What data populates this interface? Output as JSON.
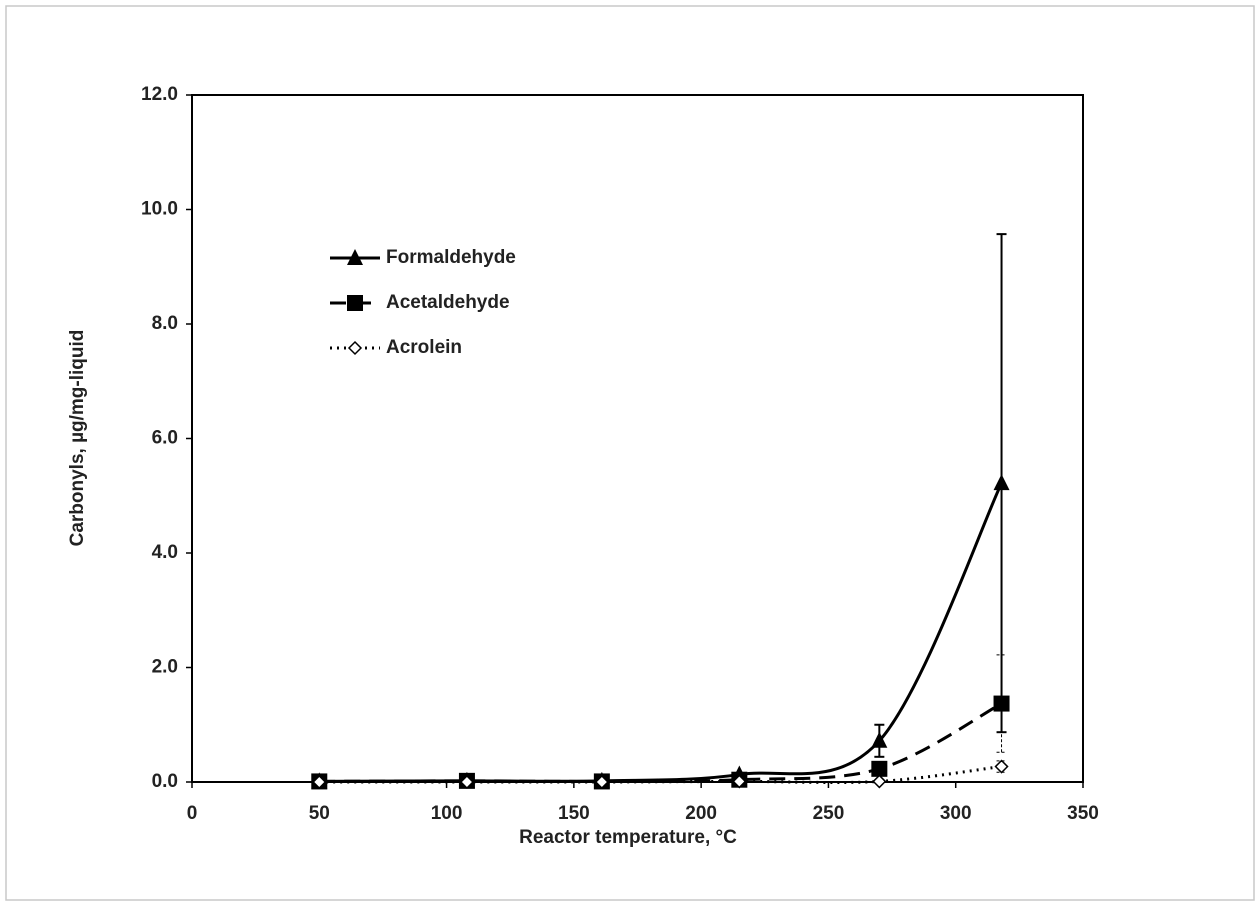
{
  "chart_data": {
    "type": "line",
    "x_label": "Reactor temperature, °C",
    "y_label": "Carbonyls, µg/mg-liquid",
    "x": [
      50,
      108,
      161,
      215,
      270,
      318
    ],
    "series": [
      {
        "name": "Formaldehyde",
        "color": "#000000",
        "marker": "triangle",
        "line_style": "solid",
        "values": [
          0.01,
          0.02,
          0.02,
          0.13,
          0.72,
          5.22
        ],
        "errors": [
          null,
          null,
          null,
          null,
          0.28,
          4.35
        ]
      },
      {
        "name": "Acetaldehyde",
        "color": "#000000",
        "marker": "square",
        "line_style": "dashed",
        "values": [
          0.01,
          0.02,
          0.01,
          0.04,
          0.23,
          1.37
        ],
        "errors": [
          null,
          null,
          null,
          null,
          null,
          0.85
        ]
      },
      {
        "name": "Acrolein",
        "color": "#000000",
        "marker": "open-diamond",
        "line_style": "dotted",
        "values": [
          0.0,
          0.0,
          0.0,
          0.01,
          0.01,
          0.27
        ],
        "errors": [
          null,
          null,
          null,
          null,
          null,
          0.1
        ]
      }
    ],
    "smooth": true,
    "xlim": [
      0,
      350
    ],
    "xticks": [
      0,
      50,
      100,
      150,
      200,
      250,
      300,
      350
    ],
    "ylim": [
      0,
      12
    ],
    "yticks": [
      {
        "value": 0,
        "label": "0.0"
      },
      {
        "value": 2,
        "label": "2.0"
      },
      {
        "value": 4,
        "label": "4.0"
      },
      {
        "value": 6,
        "label": "6.0"
      },
      {
        "value": 8,
        "label": "8.0"
      },
      {
        "value": 10,
        "label": "10.0"
      },
      {
        "value": 12,
        "label": "12.0"
      }
    ],
    "legend": "upper left"
  }
}
